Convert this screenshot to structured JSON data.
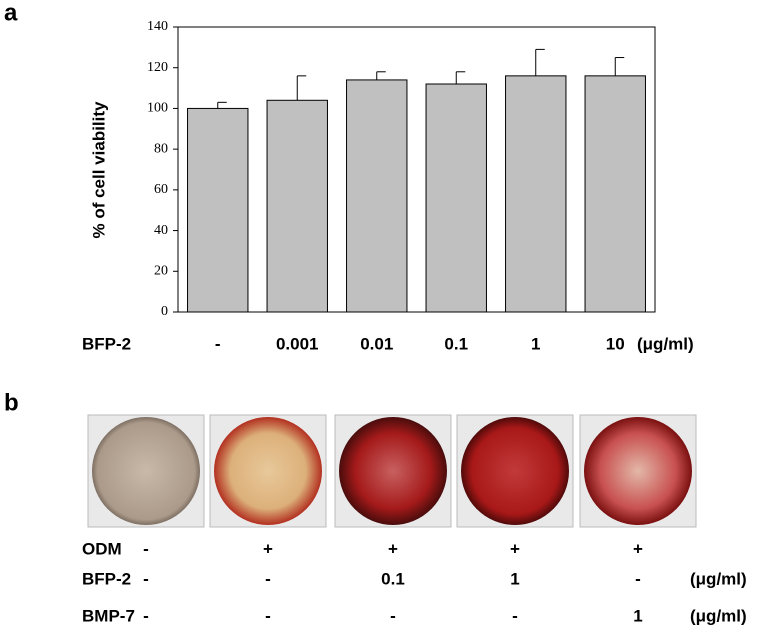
{
  "chart_data": {
    "type": "bar",
    "panel_label": "a",
    "ylabel": "% of cell viability",
    "x_row_label": "BFP-2",
    "x_unit": "(μg/ml)",
    "categories": [
      "-",
      "0.001",
      "0.01",
      "0.1",
      "1",
      "10"
    ],
    "values": [
      100,
      104,
      114,
      112,
      116,
      116
    ],
    "errors": [
      3,
      12,
      4,
      6,
      13,
      9
    ],
    "color": "#c0c0c0",
    "ylim": [
      0,
      140
    ],
    "yticks": [
      0,
      20,
      40,
      60,
      80,
      100,
      120,
      140
    ],
    "grid": false
  },
  "panel_b": {
    "label": "b",
    "rows": [
      {
        "name": "ODM",
        "cells": [
          "-",
          "+",
          "+",
          "+",
          "+"
        ]
      },
      {
        "name": "BFP-2",
        "cells": [
          "-",
          "-",
          "0.1",
          "1",
          "-"
        ],
        "unit": "(μg/ml)"
      },
      {
        "name": "BMP-7",
        "cells": [
          "-",
          "-",
          "-",
          "-",
          "1"
        ],
        "unit": "(μg/ml)"
      }
    ]
  }
}
